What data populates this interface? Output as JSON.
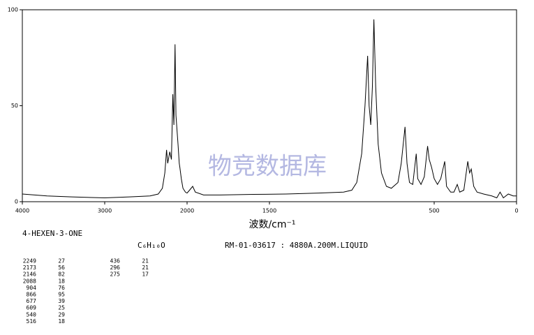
{
  "chart_data": {
    "type": "line",
    "xlabel": "波数/cm⁻¹",
    "watermark": "物竞数据库",
    "compound": "4-HEXEN-3-ONE",
    "formula": "C₆H₁₀O",
    "sample": "RM-01-03617 : 4880A.200M.LIQUID",
    "xlim": [
      4000,
      0
    ],
    "xscale": {
      "break": 2000,
      "expand": 2
    },
    "xticks": [
      4000,
      3000,
      2000,
      1500,
      500,
      0
    ],
    "ylim": [
      0,
      100
    ],
    "yticks": [
      0,
      50,
      100
    ],
    "color": "#000000",
    "x": [
      4000,
      3700,
      3400,
      3000,
      2700,
      2450,
      2350,
      2300,
      2270,
      2249,
      2235,
      2210,
      2190,
      2173,
      2160,
      2146,
      2135,
      2110,
      2095,
      2088,
      2070,
      2050,
      2020,
      2000,
      1985,
      1966,
      1950,
      1900,
      1800,
      1600,
      1400,
      1200,
      1050,
      1000,
      970,
      940,
      920,
      904,
      895,
      885,
      875,
      866,
      855,
      840,
      820,
      790,
      760,
      720,
      700,
      677,
      665,
      650,
      630,
      609,
      600,
      580,
      560,
      540,
      530,
      516,
      500,
      480,
      460,
      436,
      425,
      400,
      380,
      360,
      345,
      320,
      296,
      285,
      275,
      260,
      240,
      200,
      150,
      120,
      100,
      80,
      50,
      20,
      0
    ],
    "values": [
      4.0,
      3.0,
      2.5,
      2.0,
      2.5,
      3,
      4,
      7,
      15,
      27,
      20,
      26,
      22,
      56,
      40,
      82,
      45,
      30,
      20,
      18,
      12,
      7,
      5,
      4.5,
      6,
      8,
      5,
      3.5,
      3.5,
      3.8,
      4,
      4.5,
      5,
      6,
      10,
      25,
      50,
      76,
      50,
      40,
      60,
      95,
      60,
      30,
      15,
      8,
      7,
      10,
      20,
      39,
      20,
      10,
      9,
      25,
      12,
      9,
      13,
      29,
      22,
      18,
      12,
      9,
      12,
      21,
      8,
      5,
      5,
      9,
      5,
      6,
      21,
      15,
      17,
      8,
      5,
      4,
      3,
      2,
      5,
      2,
      4,
      3,
      3
    ],
    "peaks": [
      [
        2249,
        27
      ],
      [
        2173,
        56
      ],
      [
        2146,
        82
      ],
      [
        2088,
        18
      ],
      [
        904,
        76
      ],
      [
        866,
        95
      ],
      [
        677,
        39
      ],
      [
        609,
        25
      ],
      [
        540,
        29
      ],
      [
        516,
        18
      ],
      [
        436,
        21
      ],
      [
        296,
        21
      ],
      [
        275,
        17
      ]
    ]
  }
}
